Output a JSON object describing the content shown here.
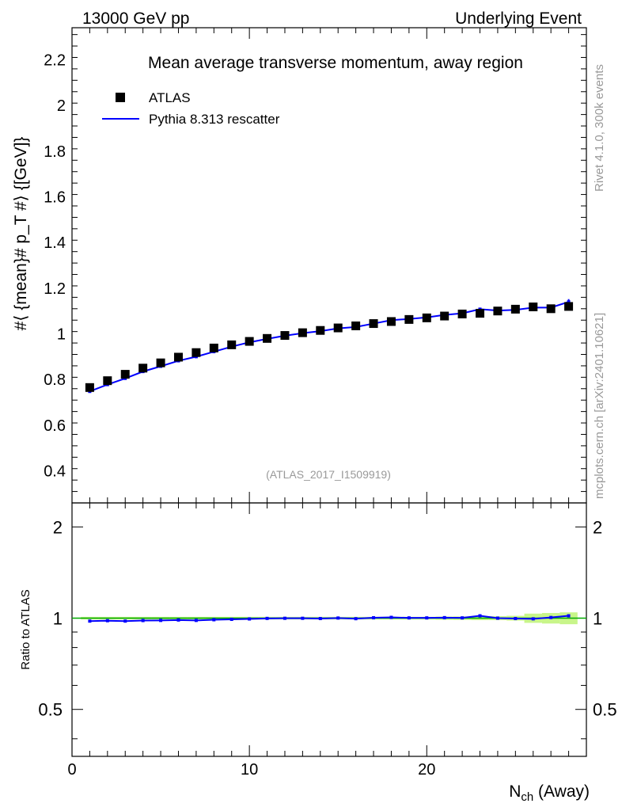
{
  "header": {
    "left": "13000 GeV pp",
    "right": "Underlying Event"
  },
  "side_labels": {
    "rivet": "Rivet 4.1.0,  300k events",
    "mcplots": "mcplots.cern.ch [arXiv:2401.10621]"
  },
  "colors": {
    "data": "#000000",
    "mc": "#0000ff",
    "ref_band": "#ffff00",
    "ref_line": "#00aa00",
    "watermark": "#999999"
  },
  "chart_data": [
    {
      "type": "scatter",
      "title": "Mean average transverse momentum, away region",
      "ylabel": "#⟨ {mean}# p_T #⟩ {[GeV]}",
      "xlabel": "N_ch (Away)",
      "xlim": [
        0,
        29
      ],
      "ylim": [
        0.26,
        2.34
      ],
      "xticks": [
        0,
        10,
        20
      ],
      "yticks": [
        0.4,
        0.6,
        0.8,
        1,
        1.2,
        1.4,
        1.6,
        1.8,
        2,
        2.2
      ],
      "watermark": "(ATLAS_2017_I1509919)",
      "legend": [
        {
          "label": "ATLAS",
          "marker": "square"
        },
        {
          "label": "Pythia 8.313 rescatter",
          "marker": "line"
        }
      ],
      "x": [
        1,
        2,
        3,
        4,
        5,
        6,
        7,
        8,
        9,
        10,
        11,
        12,
        13,
        14,
        15,
        16,
        17,
        18,
        19,
        20,
        21,
        22,
        23,
        24,
        25,
        26,
        27,
        28
      ],
      "series": [
        {
          "name": "ATLAS",
          "values": [
            0.765,
            0.795,
            0.823,
            0.85,
            0.873,
            0.898,
            0.918,
            0.938,
            0.952,
            0.967,
            0.98,
            0.993,
            1.005,
            1.015,
            1.026,
            1.035,
            1.045,
            1.054,
            1.063,
            1.07,
            1.078,
            1.087,
            1.09,
            1.1,
            1.108,
            1.118,
            1.11,
            1.12
          ]
        },
        {
          "name": "Pythia 8.313 rescatter",
          "values": [
            0.748,
            0.778,
            0.805,
            0.835,
            0.858,
            0.882,
            0.9,
            0.922,
            0.944,
            0.963,
            0.978,
            0.992,
            1.003,
            1.012,
            1.024,
            1.03,
            1.045,
            1.06,
            1.065,
            1.072,
            1.083,
            1.09,
            1.108,
            1.102,
            1.105,
            1.115,
            1.115,
            1.14
          ]
        }
      ]
    },
    {
      "type": "line",
      "ylabel": "Ratio to ATLAS",
      "xlim": [
        0,
        29
      ],
      "ylim": [
        0.35,
        2.4
      ],
      "yticks": [
        0.5,
        1,
        2
      ],
      "ytick_labels": [
        "0.5",
        "1",
        "2"
      ],
      "xticks": [
        0,
        10,
        20
      ],
      "xtick_labels": [
        "0",
        "10",
        "20"
      ],
      "x": [
        1,
        2,
        3,
        4,
        5,
        6,
        7,
        8,
        9,
        10,
        11,
        12,
        13,
        14,
        15,
        16,
        17,
        18,
        19,
        20,
        21,
        22,
        23,
        24,
        25,
        26,
        27,
        28
      ],
      "series": [
        {
          "name": "Pythia 8.313 rescatter / ATLAS",
          "values": [
            0.978,
            0.981,
            0.978,
            0.982,
            0.983,
            0.986,
            0.983,
            0.988,
            0.991,
            0.994,
            0.998,
            0.999,
            0.999,
            0.997,
            1.001,
            0.996,
            1.003,
            1.006,
            1.002,
            1.002,
            1.004,
            1.002,
            1.018,
            1.0,
            0.997,
            0.995,
            1.005,
            1.018
          ]
        }
      ],
      "band_halfwidth": [
        0.01,
        0.01,
        0.01,
        0.01,
        0.01,
        0.01,
        0.01,
        0.01,
        0.01,
        0.01,
        0.01,
        0.01,
        0.01,
        0.01,
        0.01,
        0.01,
        0.01,
        0.01,
        0.01,
        0.01,
        0.012,
        0.013,
        0.015,
        0.015,
        0.018,
        0.035,
        0.04,
        0.045
      ]
    }
  ]
}
